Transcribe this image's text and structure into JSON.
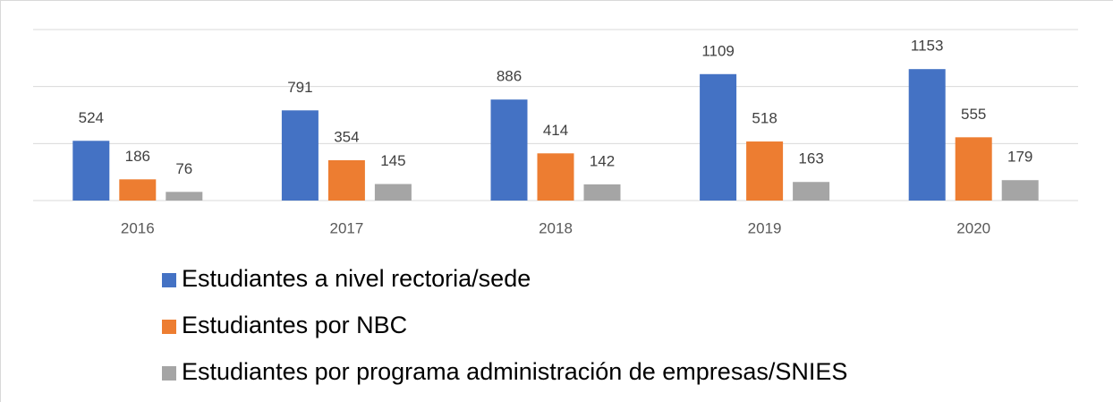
{
  "chart_data": {
    "type": "bar",
    "categories": [
      "2016",
      "2017",
      "2018",
      "2019",
      "2020"
    ],
    "series": [
      {
        "name": "Estudiantes a nivel rectoria/sede",
        "color": "#4472c4",
        "values": [
          524,
          791,
          886,
          1109,
          1153
        ]
      },
      {
        "name": "Estudiantes por NBC",
        "color": "#ed7d31",
        "values": [
          186,
          354,
          414,
          518,
          555
        ]
      },
      {
        "name": "Estudiantes por programa administración de empresas/SNIES",
        "color": "#a5a5a5",
        "values": [
          76,
          145,
          142,
          163,
          179
        ]
      }
    ],
    "ylim": [
      0,
      1500
    ],
    "yticks": [
      0,
      500,
      1000,
      1500
    ],
    "grid": true,
    "legend": "bottom"
  }
}
